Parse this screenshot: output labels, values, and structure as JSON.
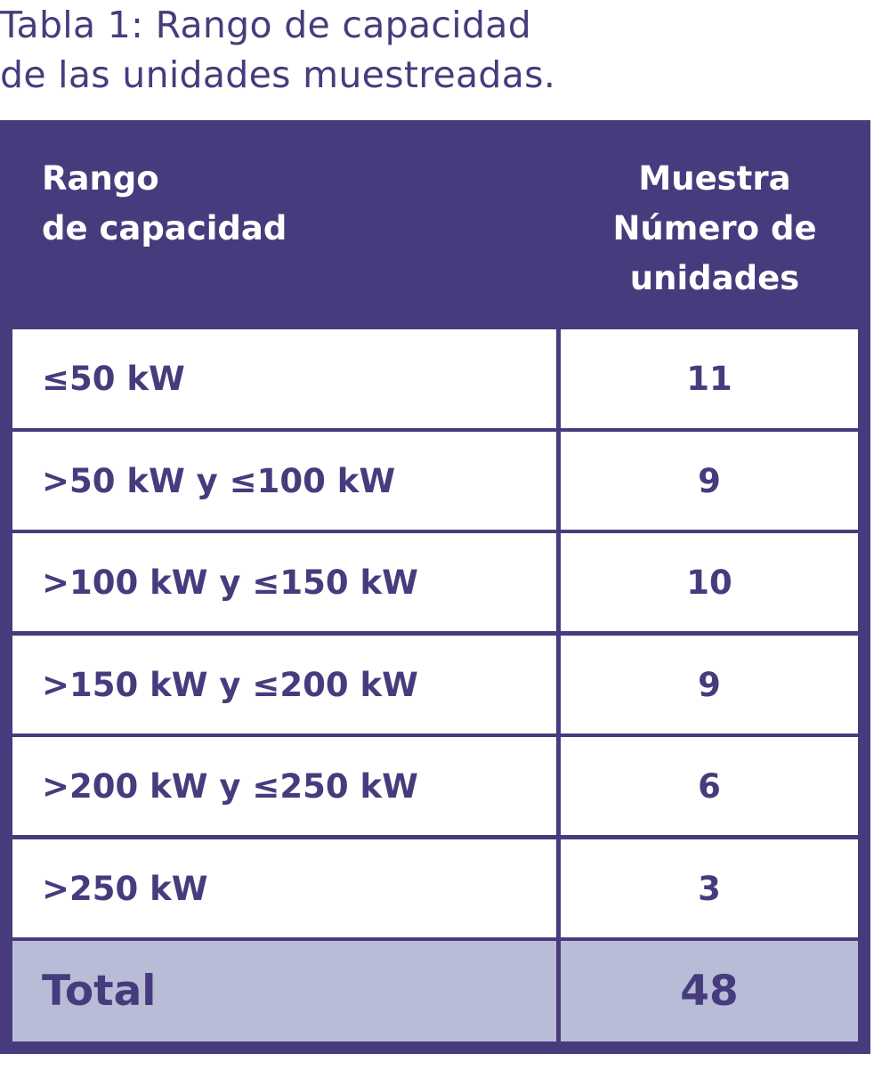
{
  "caption": {
    "line1": "Tabla 1: Rango de capacidad",
    "line2": "de las unidades muestreadas."
  },
  "table": {
    "headers": {
      "range": [
        "Rango",
        "de capacidad"
      ],
      "count": [
        "Muestra",
        "Número de",
        "unidades"
      ]
    },
    "rows": [
      {
        "range": "≤50 kW",
        "count": "11"
      },
      {
        "range": ">50 kW y ≤100 kW",
        "count": "9"
      },
      {
        "range": ">100 kW y ≤150 kW",
        "count": "10"
      },
      {
        "range": ">150 kW y ≤200 kW",
        "count": "9"
      },
      {
        "range": ">200 kW y ≤250 kW",
        "count": "6"
      },
      {
        "range": ">250 kW",
        "count": "3"
      }
    ],
    "total": {
      "label": "Total",
      "count": "48"
    }
  },
  "colors": {
    "primary": "#463c7d",
    "total_fill": "#b9bcd6",
    "cell_fill": "#ffffff"
  }
}
